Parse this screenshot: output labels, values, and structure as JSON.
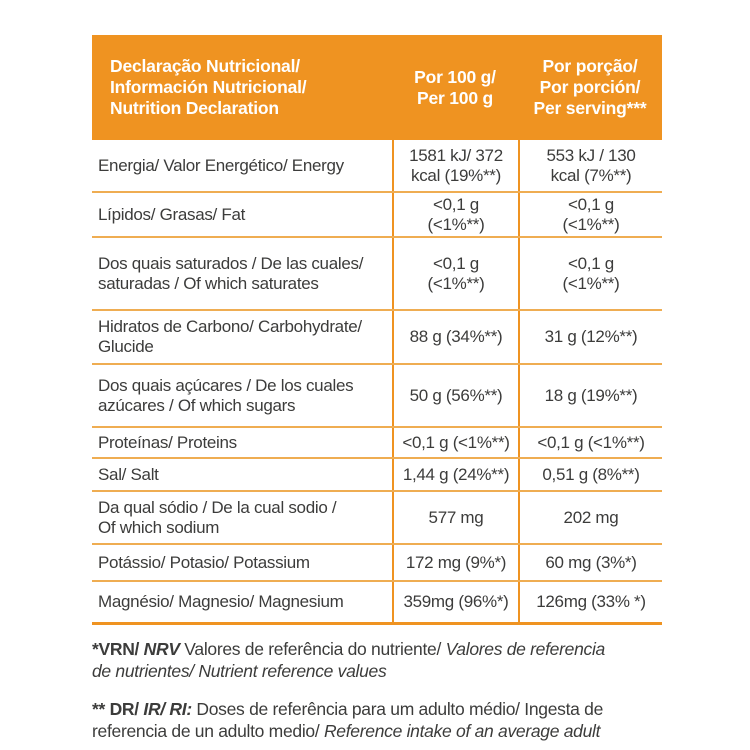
{
  "colors": {
    "header_bg": "#EF9321",
    "divider": "#EF9321",
    "row_line": "#EFAD52",
    "text": "#3C3C3B",
    "header_text": "#FFFFFF"
  },
  "table": {
    "header": {
      "label": "Declaração Nutricional/\nInformación Nutricional/\nNutrition Declaration",
      "col_per_100g": "Por 100 g/\nPer 100 g",
      "col_per_serving": "Por porção/\nPor porción/\nPer serving***"
    },
    "rows": [
      {
        "label": "Energia/ Valor Energético/ Energy",
        "per_100g": "1581 kJ/ 372\nkcal (19%**)",
        "per_serving": "553 kJ / 130\nkcal (7%**)"
      },
      {
        "label": "Lípidos/ Grasas/ Fat",
        "per_100g": "<0,1 g\n(<1%**)",
        "per_serving": "<0,1 g\n(<1%**)"
      },
      {
        "label": "Dos quais saturados / De las cuales/\nsaturadas / Of which saturates",
        "per_100g": "<0,1 g\n(<1%**)",
        "per_serving": "<0,1 g\n(<1%**)"
      },
      {
        "label": "Hidratos de Carbono/ Carbohydrate/\nGlucide",
        "per_100g": "88 g (34%**)",
        "per_serving": "31 g (12%**)"
      },
      {
        "label": "Dos quais açúcares / De los cuales\nazúcares / Of which sugars",
        "per_100g": "50 g (56%**)",
        "per_serving": "18 g (19%**)"
      },
      {
        "label": "Proteínas/ Proteins",
        "per_100g": "<0,1 g (<1%**)",
        "per_serving": "<0,1 g (<1%**)"
      },
      {
        "label": "Sal/ Salt",
        "per_100g": "1,44 g (24%**)",
        "per_serving": "0,51 g (8%**)"
      },
      {
        "label": "Da qual sódio / De la cual sodio /\nOf which sodium",
        "per_100g": "577 mg",
        "per_serving": "202 mg"
      },
      {
        "label": "Potássio/ Potasio/ Potassium",
        "per_100g": "172 mg (9%*)",
        "per_serving": "60 mg (3%*)"
      },
      {
        "label": "Magnésio/ Magnesio/ Magnesium",
        "per_100g": "359mg (96%*)",
        "per_serving": "126mg (33% *)"
      }
    ]
  },
  "footnotes": [
    {
      "id": "vrn-nrv",
      "lines": [
        [
          {
            "text": "*VRN/",
            "style": "bold"
          },
          {
            "text": " NRV",
            "style": "bold-italic"
          },
          {
            "text": " Valores de referência do nutriente/",
            "style": "regular"
          },
          {
            "text": " Valores de referencia",
            "style": "italic"
          }
        ],
        [
          {
            "text": "de nutrientes/ Nutrient reference values",
            "style": "italic"
          }
        ]
      ]
    },
    {
      "id": "dr-ir-ri",
      "lines": [
        [
          {
            "text": "** DR/",
            "style": "bold"
          },
          {
            "text": " IR/ RI:",
            "style": "bold-italic"
          },
          {
            "text": " Doses de referência para um adulto médio/ Ingesta de",
            "style": "regular"
          }
        ],
        [
          {
            "text": "referencia de un adulto medio/ ",
            "style": "regular"
          },
          {
            "text": "Reference intake of an average adult",
            "style": "italic"
          }
        ]
      ]
    }
  ]
}
